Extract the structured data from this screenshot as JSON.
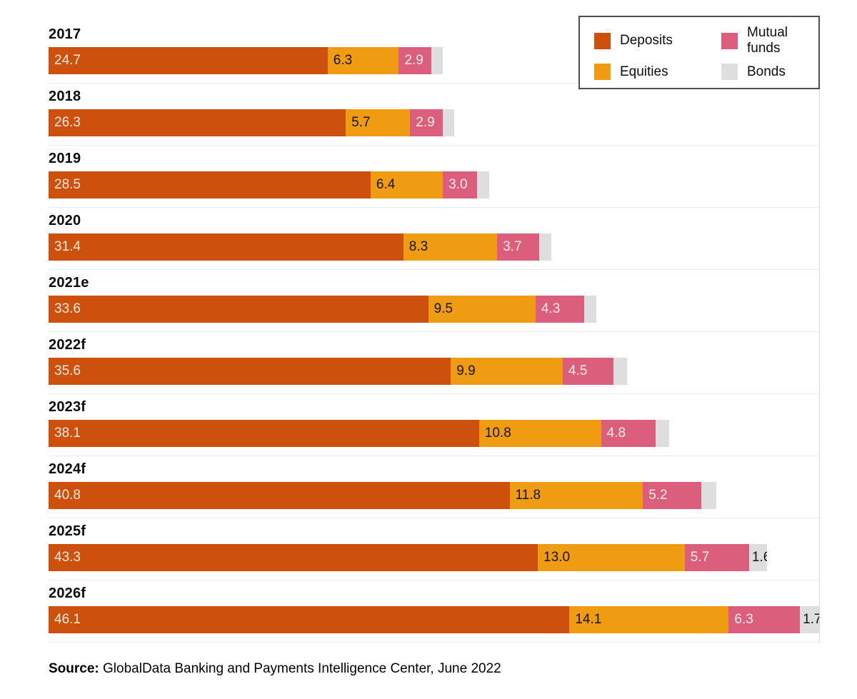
{
  "chart_data": {
    "type": "bar",
    "orientation": "horizontal",
    "stacked": true,
    "grid": false,
    "value_axis_visible": false,
    "legend_position": "top-right",
    "categories": [
      "2017",
      "2018",
      "2019",
      "2020",
      "2021e",
      "2022f",
      "2023f",
      "2024f",
      "2025f",
      "2026f"
    ],
    "series": [
      {
        "name": "Deposits",
        "color": "#ce500d",
        "label_color": "#f6ece1",
        "values": [
          24.7,
          26.3,
          28.5,
          31.4,
          33.6,
          35.6,
          38.1,
          40.8,
          43.3,
          46.1
        ],
        "labels": [
          "24.7",
          "26.3",
          "28.5",
          "31.4",
          "33.6",
          "35.6",
          "38.1",
          "40.8",
          "43.3",
          "46.1"
        ]
      },
      {
        "name": "Equities",
        "color": "#ef9c13",
        "label_color": "#141414",
        "values": [
          6.3,
          5.7,
          6.4,
          8.3,
          9.5,
          9.9,
          10.8,
          11.8,
          13.0,
          14.1
        ],
        "labels": [
          "6.3",
          "5.7",
          "6.4",
          "8.3",
          "9.5",
          "9.9",
          "10.8",
          "11.8",
          "13.0",
          "14.1"
        ]
      },
      {
        "name": "Mutual funds",
        "color": "#db5f7d",
        "label_color": "#f8eee6",
        "values": [
          2.9,
          2.9,
          3.0,
          3.7,
          4.3,
          4.5,
          4.8,
          5.2,
          5.7,
          6.3
        ],
        "labels": [
          "2.9",
          "2.9",
          "3.0",
          "3.7",
          "4.3",
          "4.5",
          "4.8",
          "5.2",
          "5.7",
          "6.3"
        ]
      },
      {
        "name": "Bonds",
        "color": "#dedede",
        "label_color": "#141414",
        "values": [
          1.0,
          1.0,
          1.1,
          1.1,
          1.1,
          1.2,
          1.2,
          1.3,
          1.6,
          1.7
        ],
        "labels": [
          "",
          "",
          "",
          "",
          "",
          "",
          "",
          "",
          "1.6",
          "1.7"
        ]
      }
    ]
  },
  "legend": {
    "items": [
      {
        "label": "Deposits",
        "color": "#ce500d"
      },
      {
        "label": "Mutual funds",
        "color": "#db5f7d"
      },
      {
        "label": "Equities",
        "color": "#ef9c13"
      },
      {
        "label": "Bonds",
        "color": "#dedede"
      }
    ]
  },
  "source": {
    "prefix": "Source:",
    "text": " GlobalData Banking and Payments Intelligence Center, June 2022"
  }
}
